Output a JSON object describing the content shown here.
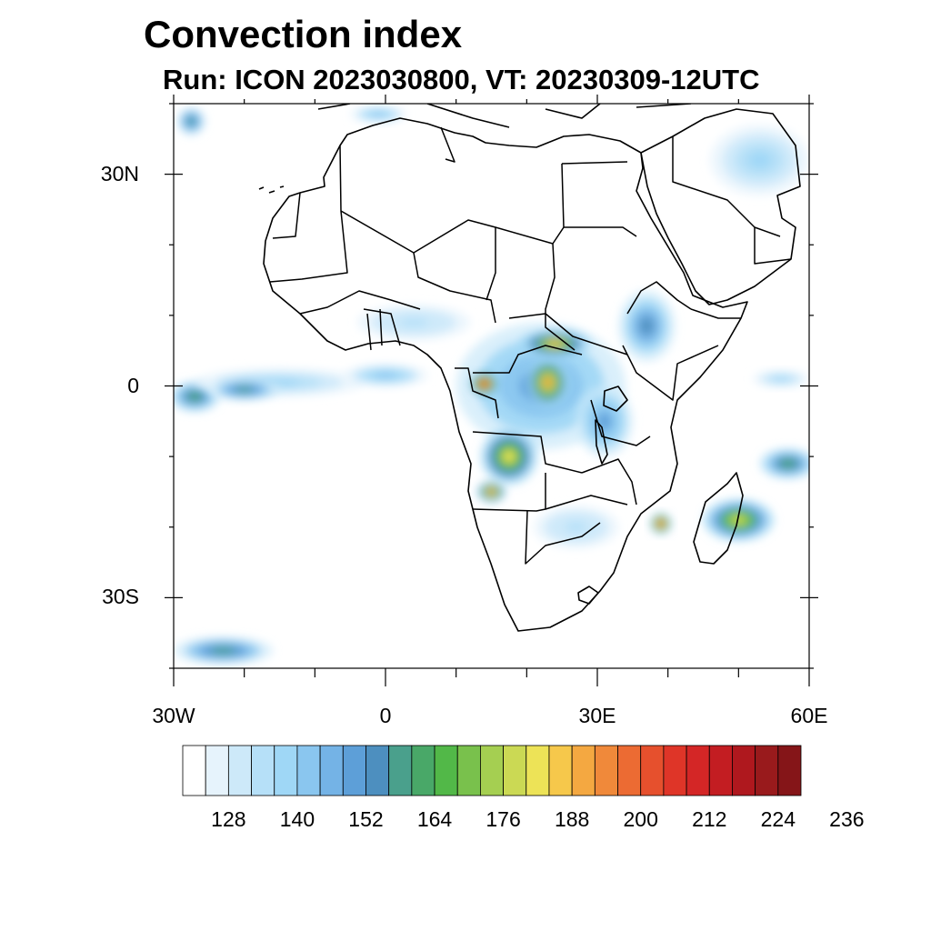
{
  "title": "Convection index",
  "subtitle": "Run: ICON 2023030800,  VT: 20230309-12UTC",
  "map": {
    "extent": {
      "lon": [
        -30,
        60
      ],
      "lat": [
        -40,
        40
      ]
    },
    "lat_ticks": [
      {
        "value": 30,
        "label": "30N"
      },
      {
        "value": 0,
        "label": "0"
      },
      {
        "value": -30,
        "label": "30S"
      }
    ],
    "lon_ticks": [
      {
        "value": -30,
        "label": "30W"
      },
      {
        "value": 0,
        "label": "0"
      },
      {
        "value": 30,
        "label": "30E"
      },
      {
        "value": 60,
        "label": "60E"
      }
    ],
    "minor_lat": [
      40,
      20,
      10,
      -10,
      -20,
      -40
    ],
    "minor_lon": [
      -20,
      -10,
      10,
      20,
      40,
      50
    ]
  },
  "colorbar": {
    "colors": [
      "#ffffff",
      "#e6f3fc",
      "#cde9f9",
      "#b6e0f8",
      "#9fd7f6",
      "#8ac6ef",
      "#74b3e6",
      "#5d9fd8",
      "#4d8fbf",
      "#4aa08c",
      "#49a868",
      "#52b848",
      "#79c14c",
      "#a5cf51",
      "#cbd954",
      "#ede357",
      "#f6c84b",
      "#f4a841",
      "#f0893a",
      "#ec6b33",
      "#e6502d",
      "#df3528",
      "#d42626",
      "#c31d22",
      "#af181e",
      "#991a1c",
      "#851518"
    ],
    "tick_labels": [
      "128",
      "140",
      "152",
      "164",
      "176",
      "188",
      "200",
      "212",
      "224",
      "236"
    ]
  },
  "convection_cells": [
    {
      "name": "equatorial-atlantic",
      "lon": -27,
      "lat": -1.5,
      "rx": 3.5,
      "ry": 2.2,
      "level": 10
    },
    {
      "name": "atlantic-band-west",
      "lon": -15,
      "lat": 0.5,
      "rx": 12,
      "ry": 2,
      "level": 4
    },
    {
      "name": "atlantic-band-core",
      "lon": -20,
      "lat": -0.5,
      "rx": 5,
      "ry": 1.6,
      "level": 9
    },
    {
      "name": "gulf-guinea",
      "lon": 0,
      "lat": 1.5,
      "rx": 6,
      "ry": 1.6,
      "level": 5
    },
    {
      "name": "west-africa-coast",
      "lon": 4,
      "lat": 9,
      "rx": 8,
      "ry": 2.5,
      "level": 3
    },
    {
      "name": "congo-basin",
      "lon": 22,
      "lat": 0,
      "rx": 12,
      "ry": 9,
      "level": 7
    },
    {
      "name": "gabon-hotspot",
      "lon": 14,
      "lat": 0.3,
      "rx": 2,
      "ry": 1.6,
      "level": 22
    },
    {
      "name": "drc-core",
      "lon": 23,
      "lat": 0.5,
      "rx": 3,
      "ry": 3.5,
      "level": 17
    },
    {
      "name": "angola-core",
      "lon": 17.5,
      "lat": -10,
      "rx": 4,
      "ry": 4,
      "level": 15
    },
    {
      "name": "angola-south",
      "lon": 15,
      "lat": -15,
      "rx": 2,
      "ry": 1.5,
      "level": 18
    },
    {
      "name": "central-african-rep",
      "lon": 24,
      "lat": 6,
      "rx": 5,
      "ry": 2,
      "level": 16
    },
    {
      "name": "ethiopia-highlands",
      "lon": 37,
      "lat": 8.5,
      "rx": 4,
      "ry": 5,
      "level": 8
    },
    {
      "name": "great-lakes",
      "lon": 31,
      "lat": -5,
      "rx": 4,
      "ry": 5,
      "level": 7
    },
    {
      "name": "mozambique-channel",
      "lon": 39,
      "lat": -19.5,
      "rx": 1.5,
      "ry": 1.5,
      "level": 21
    },
    {
      "name": "madagascar-east",
      "lon": 50,
      "lat": -19,
      "rx": 5,
      "ry": 3,
      "level": 14
    },
    {
      "name": "indian-ocean-east",
      "lon": 57,
      "lat": -11,
      "rx": 4,
      "ry": 2.2,
      "level": 10
    },
    {
      "name": "indian-ocean-equator",
      "lon": 56,
      "lat": 1,
      "rx": 4,
      "ry": 1.2,
      "level": 4
    },
    {
      "name": "arabian-peninsula",
      "lon": 53,
      "lat": 32,
      "rx": 7,
      "ry": 5,
      "level": 4
    },
    {
      "name": "mediterranean",
      "lon": -1,
      "lat": 38.5,
      "rx": 4,
      "ry": 1.2,
      "level": 5
    },
    {
      "name": "north-atlantic-corner",
      "lon": -27.5,
      "lat": 37.5,
      "rx": 2,
      "ry": 2,
      "level": 9
    },
    {
      "name": "south-atlantic",
      "lon": -23,
      "lat": -37.5,
      "rx": 7,
      "ry": 2,
      "level": 9
    },
    {
      "name": "southern-africa-plateau",
      "lon": 27,
      "lat": -20,
      "rx": 6,
      "ry": 3,
      "level": 3
    }
  ]
}
